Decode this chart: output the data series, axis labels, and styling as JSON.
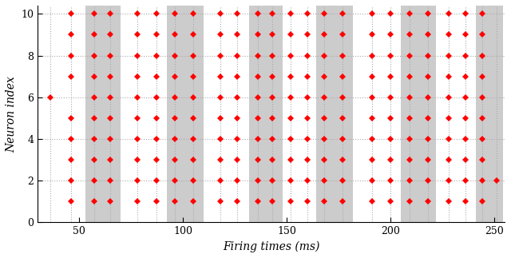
{
  "xlabel": "Firing times (ms)",
  "ylabel": "Neuron index",
  "xlim": [
    30,
    255
  ],
  "ylim": [
    0,
    10.4
  ],
  "yticks": [
    0,
    2,
    4,
    6,
    8,
    10
  ],
  "xticks": [
    50,
    100,
    150,
    200,
    250
  ],
  "marker_color": "#ff0000",
  "marker": "D",
  "marker_size": 4,
  "band_color": "#cccccc",
  "band_alpha": 1.0,
  "vline_color": "#aaaaaa",
  "grid_color": "#aaaaaa",
  "figsize": [
    6.4,
    3.23
  ],
  "dpi": 100,
  "neuron_indices": [
    1,
    2,
    3,
    4,
    5,
    6,
    7,
    8,
    9,
    10
  ],
  "groups": [
    {
      "gray": false,
      "spikes": [
        [
          36,
          [
            6
          ]
        ],
        [
          46,
          [
            1,
            2,
            3,
            4,
            5,
            7,
            8,
            9,
            10
          ]
        ]
      ]
    },
    {
      "gray": true,
      "spikes": [
        [
          57,
          [
            1,
            2,
            3,
            4,
            5,
            6,
            7,
            8,
            9,
            10
          ]
        ],
        [
          65,
          [
            1,
            2,
            3,
            4,
            5,
            6,
            7,
            8,
            9,
            10
          ]
        ]
      ]
    },
    {
      "gray": false,
      "spikes": [
        [
          78,
          [
            1,
            2,
            3,
            4,
            5,
            6,
            7,
            8,
            9,
            10
          ]
        ],
        [
          87,
          [
            1,
            2,
            3,
            4,
            5,
            6,
            7,
            8,
            9,
            10
          ]
        ]
      ]
    },
    {
      "gray": true,
      "spikes": [
        [
          96,
          [
            1,
            2,
            3,
            4,
            5,
            6,
            7,
            8,
            9,
            10
          ]
        ],
        [
          105,
          [
            1,
            2,
            3,
            4,
            5,
            6,
            7,
            8,
            9,
            10
          ]
        ]
      ]
    },
    {
      "gray": false,
      "spikes": [
        [
          118,
          [
            1,
            2,
            3,
            4,
            5,
            6,
            7,
            8,
            9,
            10
          ]
        ],
        [
          126,
          [
            1,
            2,
            3,
            4,
            5,
            6,
            7,
            8,
            9,
            10
          ]
        ]
      ]
    },
    {
      "gray": true,
      "spikes": [
        [
          136,
          [
            1,
            2,
            3,
            4,
            5,
            6,
            7,
            8,
            9,
            10
          ]
        ],
        [
          143,
          [
            1,
            2,
            3,
            4,
            5,
            6,
            7,
            8,
            9,
            10
          ]
        ]
      ]
    },
    {
      "gray": false,
      "spikes": [
        [
          152,
          [
            1,
            2,
            3,
            4,
            5,
            6,
            7,
            8,
            9,
            10
          ]
        ],
        [
          160,
          [
            1,
            2,
            3,
            4,
            5,
            6,
            7,
            8,
            9,
            10
          ]
        ]
      ]
    },
    {
      "gray": true,
      "spikes": [
        [
          168,
          [
            1,
            2,
            3,
            4,
            5,
            6,
            7,
            8,
            9,
            10
          ]
        ],
        [
          177,
          [
            1,
            2,
            3,
            4,
            5,
            6,
            7,
            8,
            9,
            10
          ]
        ]
      ]
    },
    {
      "gray": false,
      "spikes": [
        [
          191,
          [
            1,
            2,
            3,
            4,
            5,
            6,
            7,
            8,
            9,
            10
          ]
        ],
        [
          200,
          [
            1,
            2,
            3,
            4,
            5,
            6,
            7,
            8,
            9,
            10
          ]
        ]
      ]
    },
    {
      "gray": true,
      "spikes": [
        [
          209,
          [
            1,
            2,
            3,
            4,
            5,
            6,
            7,
            8,
            9,
            10
          ]
        ],
        [
          218,
          [
            1,
            2,
            3,
            4,
            5,
            6,
            7,
            8,
            9,
            10
          ]
        ]
      ]
    },
    {
      "gray": false,
      "spikes": [
        [
          228,
          [
            1,
            2,
            3,
            4,
            5,
            6,
            7,
            8,
            9,
            10
          ]
        ],
        [
          236,
          [
            1,
            2,
            3,
            4,
            5,
            6,
            7,
            8,
            9,
            10
          ]
        ]
      ]
    },
    {
      "gray": true,
      "spikes": [
        [
          244,
          [
            1,
            2,
            3,
            4,
            5,
            6,
            7,
            8,
            9,
            10
          ]
        ],
        [
          251,
          [
            2
          ]
        ]
      ]
    }
  ],
  "band_ranges": [
    [
      53,
      70
    ],
    [
      92,
      110
    ],
    [
      132,
      148
    ],
    [
      164,
      182
    ],
    [
      205,
      222
    ],
    [
      241,
      254
    ]
  ]
}
